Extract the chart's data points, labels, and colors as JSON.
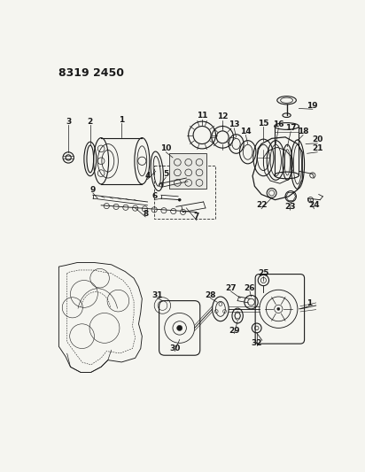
{
  "title": "8319 2450",
  "bg_color": "#f5f5f0",
  "line_color": "#1a1a1a",
  "lw": 0.8,
  "fig_w": 4.12,
  "fig_h": 5.33,
  "dpi": 100
}
